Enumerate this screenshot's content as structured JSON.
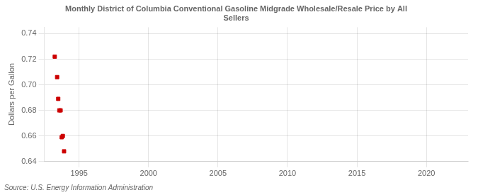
{
  "chart_data": {
    "type": "scatter",
    "title": [
      "Monthly District of Columbia Conventional Gasoline Midgrade Wholesale/Resale Price by All",
      "Sellers"
    ],
    "ylabel": "Dollars per Gallon",
    "annotation": "Source: U.S. Energy Information Administration",
    "x": [
      1993.25,
      1993.42,
      1993.5,
      1993.58,
      1993.67,
      1993.75,
      1993.83,
      1993.92
    ],
    "values": [
      0.722,
      0.706,
      0.689,
      0.68,
      0.68,
      0.659,
      0.66,
      0.648
    ],
    "color": "#cc0000",
    "marker": "square",
    "xlim": [
      1992.5,
      2023
    ],
    "ylim": [
      0.64,
      0.745
    ],
    "xticks": [
      1995,
      2000,
      2005,
      2010,
      2015,
      2020
    ],
    "yticks": [
      0.64,
      0.66,
      0.68,
      {
        "value": 0.7,
        "label": "0.70"
      },
      0.72,
      0.74
    ],
    "grid": true
  }
}
